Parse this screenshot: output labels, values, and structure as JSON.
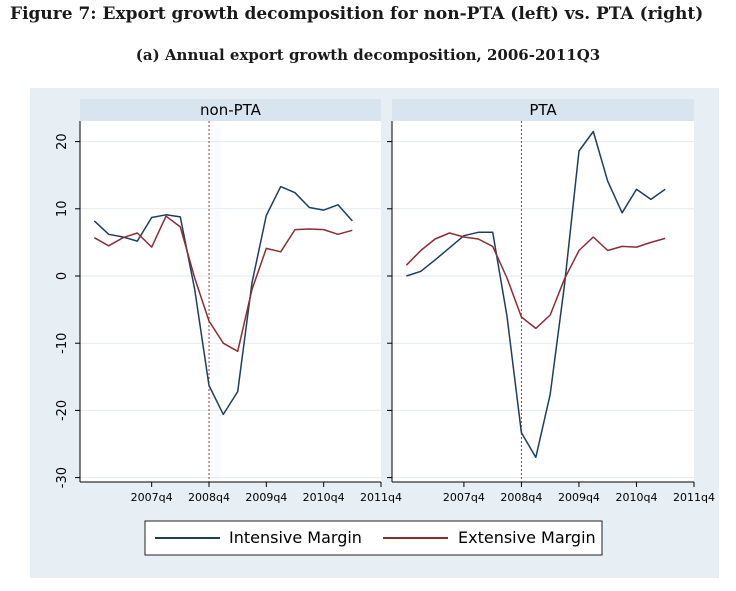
{
  "figure": {
    "title": "Figure 7: Export growth decomposition for non-PTA (left) vs. PTA (right)",
    "subtitle": "(a) Annual export growth decomposition, 2006-2011Q3"
  },
  "colors": {
    "background": "#e8eff4",
    "strip": "#d9e5ee",
    "intensive": "#1c3f5e",
    "extensive": "#8b2e34",
    "refline": "#b03040"
  },
  "chart_data": {
    "type": "line",
    "x": [
      2006.75,
      2007.0,
      2007.25,
      2007.5,
      2007.75,
      2008.0,
      2008.25,
      2008.5,
      2008.75,
      2009.0,
      2009.25,
      2009.5,
      2009.75,
      2010.0,
      2010.25,
      2010.5,
      2010.75,
      2011.0,
      2011.25
    ],
    "xticks": [
      2007.75,
      2008.75,
      2009.75,
      2010.75,
      2011.75
    ],
    "xtick_labels": [
      "2007q4",
      "2008q4",
      "2009q4",
      "2010q4",
      "2011q4"
    ],
    "xlim": [
      2006.5,
      2011.75
    ],
    "yticks": [
      -30,
      -20,
      -10,
      0,
      10,
      20
    ],
    "ytick_labels": [
      "-30",
      "-20",
      "-10",
      "0",
      "10",
      "20"
    ],
    "ylim": [
      -31,
      22
    ],
    "reference_x": 2008.75,
    "grid": true,
    "legend_position": "bottom",
    "panels": [
      {
        "label": "non-PTA",
        "series": [
          {
            "name": "Intensive Margin",
            "values": [
              8.2,
              6.2,
              5.8,
              5.2,
              8.7,
              9.1,
              8.8,
              -2.0,
              -16.3,
              -20.6,
              -17.2,
              -1.0,
              9.0,
              13.3,
              12.4,
              10.2,
              9.8,
              10.6,
              8.2
            ]
          },
          {
            "name": "Extensive Margin",
            "values": [
              5.7,
              4.5,
              5.7,
              6.4,
              4.3,
              8.9,
              7.3,
              -0.3,
              -6.7,
              -10.0,
              -11.2,
              -2.0,
              4.1,
              3.6,
              6.9,
              7.0,
              6.9,
              6.2,
              6.8
            ]
          }
        ]
      },
      {
        "label": "PTA",
        "series": [
          {
            "name": "Intensive Margin",
            "values": [
              0.0,
              0.7,
              2.4,
              4.2,
              6.0,
              6.5,
              6.5,
              -6.0,
              -23.3,
              -27.0,
              -17.6,
              -1.2,
              18.6,
              21.5,
              14.1,
              9.4,
              12.9,
              11.4,
              12.9
            ]
          },
          {
            "name": "Extensive Margin",
            "values": [
              1.6,
              3.8,
              5.5,
              6.4,
              5.8,
              5.5,
              4.4,
              -0.3,
              -6.1,
              -7.8,
              -5.8,
              -0.4,
              3.8,
              5.8,
              3.8,
              4.4,
              4.3,
              5.0,
              5.6
            ]
          }
        ]
      }
    ]
  }
}
